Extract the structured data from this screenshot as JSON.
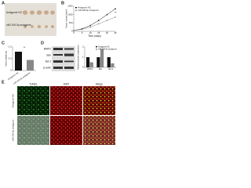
{
  "panel_labels": [
    "A",
    "B",
    "C",
    "D",
    "E"
  ],
  "photo_labels": [
    "Antagomir NC",
    "miR-205-5p antagomir"
  ],
  "chart_data": [
    {
      "type": "line",
      "y_label": "Tumor volume (mm³)",
      "x_label": "Time (days)",
      "x": [
        0,
        5,
        10,
        15,
        20,
        25
      ],
      "xlim": [
        0,
        25
      ],
      "xticks": [
        0,
        5,
        10,
        15,
        20,
        25
      ],
      "ylim": [
        0,
        1500
      ],
      "yticks": [
        0,
        500,
        1000,
        1500
      ],
      "annotation": "**",
      "series": [
        {
          "name": "Antagomir NC",
          "color": "#111111",
          "values": [
            50,
            150,
            350,
            650,
            1000,
            1350
          ]
        },
        {
          "name": "miR-205-5p antagomir",
          "color": "#888888",
          "values": [
            50,
            120,
            250,
            450,
            650,
            850
          ]
        }
      ]
    },
    {
      "type": "bar",
      "y_label": "Tumor weight (g)",
      "categories": [
        "Antagomir NC",
        "miR-205-5p antagomir"
      ],
      "values": [
        0.8,
        0.45
      ],
      "colors": [
        "#111111",
        "#888888"
      ],
      "ylim": [
        0,
        1
      ],
      "yticks": [
        0,
        0.5,
        {
          "value": 1,
          "label": "1.0"
        }
      ],
      "annotation": "**"
    },
    {
      "type": "bar",
      "y_label": "Relative protein expression",
      "categories": [
        "MMP2",
        "Bax",
        "Bcl-2"
      ],
      "ylim": [
        0,
        2
      ],
      "yticks": [
        0,
        1,
        2
      ],
      "series": [
        {
          "name": "Antagomir NC",
          "color": "#111111",
          "values": [
            1,
            1,
            1
          ]
        },
        {
          "name": "miR-205-5p antagomir",
          "color": "#888888",
          "values": [
            0.5,
            1.8,
            0.4
          ]
        }
      ]
    }
  ],
  "blot": {
    "proteins": [
      "MMP2",
      "Bax",
      "Bcl-2",
      "β-actin"
    ]
  },
  "fluorescence": {
    "columns": [
      "TUNEL",
      "DAPI",
      "Merge"
    ],
    "rows": [
      "Antagomir NC",
      "miR-205-5p antagomir"
    ]
  }
}
